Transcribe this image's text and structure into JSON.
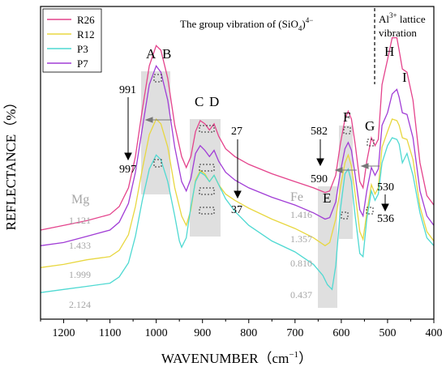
{
  "chart_data": {
    "type": "line",
    "xlabel": "WAVENUMBER（cm",
    "xlabel_sup": "−1",
    "xlabel_end": "）",
    "ylabel": "REFLECTANCE（%）",
    "xlim": [
      1250,
      400
    ],
    "x_reversed": true,
    "x_ticks": [
      1200,
      1100,
      1000,
      900,
      800,
      700,
      600,
      500,
      400
    ],
    "y_ticks_shown": false,
    "grid": false,
    "legend_position": "top-left",
    "series": [
      {
        "name": "R26",
        "color": "#e4438c",
        "points": [
          [
            1250,
            0.285
          ],
          [
            1200,
            0.3
          ],
          [
            1150,
            0.315
          ],
          [
            1100,
            0.335
          ],
          [
            1080,
            0.36
          ],
          [
            1060,
            0.42
          ],
          [
            1045,
            0.52
          ],
          [
            1030,
            0.67
          ],
          [
            1015,
            0.81
          ],
          [
            1000,
            0.875
          ],
          [
            990,
            0.86
          ],
          [
            975,
            0.77
          ],
          [
            960,
            0.62
          ],
          [
            945,
            0.52
          ],
          [
            935,
            0.485
          ],
          [
            925,
            0.52
          ],
          [
            915,
            0.6
          ],
          [
            905,
            0.635
          ],
          [
            895,
            0.625
          ],
          [
            885,
            0.605
          ],
          [
            875,
            0.625
          ],
          [
            865,
            0.585
          ],
          [
            850,
            0.545
          ],
          [
            830,
            0.52
          ],
          [
            800,
            0.495
          ],
          [
            750,
            0.465
          ],
          [
            700,
            0.44
          ],
          [
            660,
            0.42
          ],
          [
            635,
            0.405
          ],
          [
            625,
            0.41
          ],
          [
            612,
            0.46
          ],
          [
            602,
            0.56
          ],
          [
            592,
            0.64
          ],
          [
            585,
            0.665
          ],
          [
            578,
            0.64
          ],
          [
            570,
            0.56
          ],
          [
            560,
            0.44
          ],
          [
            553,
            0.42
          ],
          [
            545,
            0.505
          ],
          [
            535,
            0.58
          ],
          [
            527,
            0.555
          ],
          [
            520,
            0.575
          ],
          [
            512,
            0.75
          ],
          [
            500,
            0.83
          ],
          [
            490,
            0.9
          ],
          [
            480,
            0.9
          ],
          [
            475,
            0.86
          ],
          [
            468,
            0.8
          ],
          [
            458,
            0.79
          ],
          [
            445,
            0.7
          ],
          [
            430,
            0.5
          ],
          [
            415,
            0.395
          ],
          [
            400,
            0.365
          ]
        ]
      },
      {
        "name": "P7",
        "color": "#a13dd6",
        "points": [
          [
            1250,
            0.235
          ],
          [
            1200,
            0.245
          ],
          [
            1150,
            0.265
          ],
          [
            1100,
            0.285
          ],
          [
            1080,
            0.31
          ],
          [
            1060,
            0.37
          ],
          [
            1045,
            0.47
          ],
          [
            1030,
            0.61
          ],
          [
            1015,
            0.75
          ],
          [
            1000,
            0.81
          ],
          [
            990,
            0.79
          ],
          [
            975,
            0.7
          ],
          [
            960,
            0.55
          ],
          [
            945,
            0.44
          ],
          [
            935,
            0.41
          ],
          [
            925,
            0.45
          ],
          [
            915,
            0.53
          ],
          [
            905,
            0.555
          ],
          [
            895,
            0.54
          ],
          [
            885,
            0.52
          ],
          [
            875,
            0.54
          ],
          [
            865,
            0.505
          ],
          [
            850,
            0.47
          ],
          [
            830,
            0.445
          ],
          [
            800,
            0.42
          ],
          [
            750,
            0.39
          ],
          [
            700,
            0.365
          ],
          [
            660,
            0.34
          ],
          [
            635,
            0.32
          ],
          [
            625,
            0.325
          ],
          [
            612,
            0.375
          ],
          [
            602,
            0.47
          ],
          [
            592,
            0.545
          ],
          [
            585,
            0.565
          ],
          [
            578,
            0.54
          ],
          [
            570,
            0.46
          ],
          [
            560,
            0.35
          ],
          [
            553,
            0.33
          ],
          [
            545,
            0.41
          ],
          [
            535,
            0.485
          ],
          [
            527,
            0.46
          ],
          [
            520,
            0.48
          ],
          [
            512,
            0.62
          ],
          [
            500,
            0.66
          ],
          [
            490,
            0.72
          ],
          [
            480,
            0.735
          ],
          [
            475,
            0.71
          ],
          [
            468,
            0.66
          ],
          [
            458,
            0.655
          ],
          [
            445,
            0.58
          ],
          [
            430,
            0.41
          ],
          [
            415,
            0.33
          ],
          [
            400,
            0.3
          ]
        ]
      },
      {
        "name": "R12",
        "color": "#e8d740",
        "points": [
          [
            1250,
            0.165
          ],
          [
            1200,
            0.175
          ],
          [
            1150,
            0.19
          ],
          [
            1100,
            0.2
          ],
          [
            1080,
            0.22
          ],
          [
            1060,
            0.27
          ],
          [
            1045,
            0.36
          ],
          [
            1030,
            0.48
          ],
          [
            1015,
            0.59
          ],
          [
            1000,
            0.64
          ],
          [
            990,
            0.625
          ],
          [
            975,
            0.55
          ],
          [
            960,
            0.42
          ],
          [
            945,
            0.33
          ],
          [
            935,
            0.3
          ],
          [
            925,
            0.35
          ],
          [
            915,
            0.445
          ],
          [
            905,
            0.475
          ],
          [
            895,
            0.465
          ],
          [
            885,
            0.44
          ],
          [
            875,
            0.46
          ],
          [
            865,
            0.43
          ],
          [
            850,
            0.4
          ],
          [
            830,
            0.38
          ],
          [
            800,
            0.355
          ],
          [
            750,
            0.32
          ],
          [
            700,
            0.29
          ],
          [
            660,
            0.26
          ],
          [
            635,
            0.235
          ],
          [
            625,
            0.245
          ],
          [
            612,
            0.32
          ],
          [
            602,
            0.42
          ],
          [
            592,
            0.5
          ],
          [
            585,
            0.525
          ],
          [
            578,
            0.49
          ],
          [
            570,
            0.4
          ],
          [
            560,
            0.28
          ],
          [
            553,
            0.255
          ],
          [
            545,
            0.34
          ],
          [
            535,
            0.43
          ],
          [
            527,
            0.4
          ],
          [
            520,
            0.42
          ],
          [
            512,
            0.55
          ],
          [
            500,
            0.6
          ],
          [
            490,
            0.64
          ],
          [
            480,
            0.635
          ],
          [
            475,
            0.62
          ],
          [
            468,
            0.58
          ],
          [
            458,
            0.575
          ],
          [
            445,
            0.51
          ],
          [
            430,
            0.36
          ],
          [
            415,
            0.28
          ],
          [
            400,
            0.25
          ]
        ]
      },
      {
        "name": "P3",
        "color": "#4fd9d2",
        "points": [
          [
            1250,
            0.085
          ],
          [
            1200,
            0.095
          ],
          [
            1150,
            0.105
          ],
          [
            1100,
            0.115
          ],
          [
            1080,
            0.135
          ],
          [
            1060,
            0.18
          ],
          [
            1045,
            0.265
          ],
          [
            1030,
            0.38
          ],
          [
            1015,
            0.48
          ],
          [
            1000,
            0.525
          ],
          [
            990,
            0.51
          ],
          [
            975,
            0.44
          ],
          [
            960,
            0.33
          ],
          [
            950,
            0.25
          ],
          [
            945,
            0.23
          ],
          [
            935,
            0.26
          ],
          [
            925,
            0.36
          ],
          [
            915,
            0.44
          ],
          [
            905,
            0.47
          ],
          [
            895,
            0.46
          ],
          [
            885,
            0.44
          ],
          [
            875,
            0.46
          ],
          [
            865,
            0.43
          ],
          [
            850,
            0.385
          ],
          [
            830,
            0.345
          ],
          [
            800,
            0.3
          ],
          [
            750,
            0.25
          ],
          [
            700,
            0.215
          ],
          [
            660,
            0.175
          ],
          [
            640,
            0.14
          ],
          [
            630,
            0.11
          ],
          [
            620,
            0.095
          ],
          [
            612,
            0.17
          ],
          [
            602,
            0.35
          ],
          [
            592,
            0.465
          ],
          [
            585,
            0.48
          ],
          [
            578,
            0.44
          ],
          [
            570,
            0.33
          ],
          [
            560,
            0.21
          ],
          [
            553,
            0.2
          ],
          [
            545,
            0.32
          ],
          [
            535,
            0.41
          ],
          [
            527,
            0.38
          ],
          [
            520,
            0.4
          ],
          [
            512,
            0.5
          ],
          [
            500,
            0.555
          ],
          [
            490,
            0.58
          ],
          [
            480,
            0.575
          ],
          [
            475,
            0.56
          ],
          [
            468,
            0.5
          ],
          [
            458,
            0.53
          ],
          [
            445,
            0.46
          ],
          [
            430,
            0.34
          ],
          [
            415,
            0.26
          ],
          [
            400,
            0.235
          ]
        ]
      }
    ],
    "annotations": {
      "top_label": "The group vibration of (SiO",
      "top_sub": "4",
      "top_close": ")",
      "top_sup": "4−",
      "al_label_top": "Al",
      "al_sup": "3+",
      "al_label_rest": " lattice",
      "al_label_line2": "vibration",
      "peak_letters": [
        "A",
        "B",
        "C",
        "D",
        "E",
        "F",
        "G",
        "H",
        "I"
      ],
      "shift_ab_from": "991",
      "shift_ab_to": "997",
      "shift_cd_from": "27",
      "shift_cd_to": "37",
      "shift_f_from": "582",
      "shift_f_to": "590",
      "shift_g_from": "530",
      "shift_g_to": "536",
      "mg_label": "Mg",
      "mg_values": [
        "1.121",
        "1.433",
        "1.999",
        "2.124"
      ],
      "fe_label": "Fe",
      "fe_values": [
        "1.416",
        "1.357",
        "0.810",
        "0.437"
      ]
    },
    "colors": {
      "r26": "#e4438c",
      "r12": "#e8d740",
      "p3": "#4fd9d2",
      "p7": "#a13dd6",
      "band": "#d9d9d9",
      "ratio_text": "#a6a6a6"
    }
  }
}
